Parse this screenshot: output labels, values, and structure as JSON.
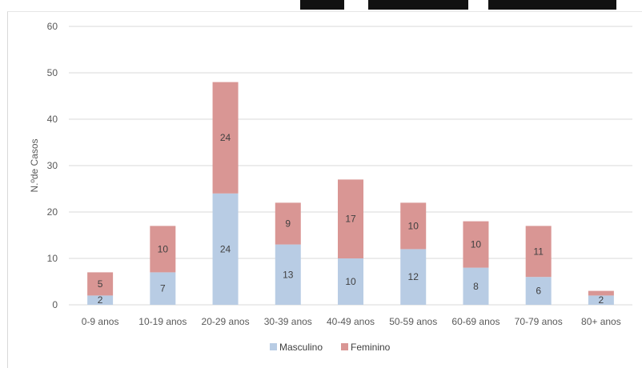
{
  "chart_data": {
    "type": "bar",
    "stacked": true,
    "categories": [
      "0-9 anos",
      "10-19 anos",
      "20-29 anos",
      "30-39 anos",
      "40-49 anos",
      "50-59 anos",
      "60-69 anos",
      "70-79 anos",
      "80+ anos"
    ],
    "series": [
      {
        "name": "Masculino",
        "values": [
          2,
          7,
          24,
          13,
          10,
          12,
          8,
          6,
          2
        ],
        "color": "#b8cce4"
      },
      {
        "name": "Feminino",
        "values": [
          5,
          10,
          24,
          9,
          17,
          10,
          10,
          11,
          1
        ],
        "color": "#d99694"
      }
    ],
    "data_labels": {
      "Masculino": [
        "2",
        "7",
        "24",
        "13",
        "10",
        "12",
        "8",
        "6",
        "2"
      ],
      "Feminino": [
        "5",
        "10",
        "24",
        "9",
        "17",
        "10",
        "10",
        "11",
        ""
      ]
    },
    "xlabel": "",
    "ylabel": "N.ºde Casos",
    "ylim": [
      0,
      60
    ],
    "yticks": [
      0,
      10,
      20,
      30,
      40,
      50,
      60
    ],
    "grid": true,
    "legend_position": "bottom",
    "gridline_color": "#d9d9d9"
  }
}
